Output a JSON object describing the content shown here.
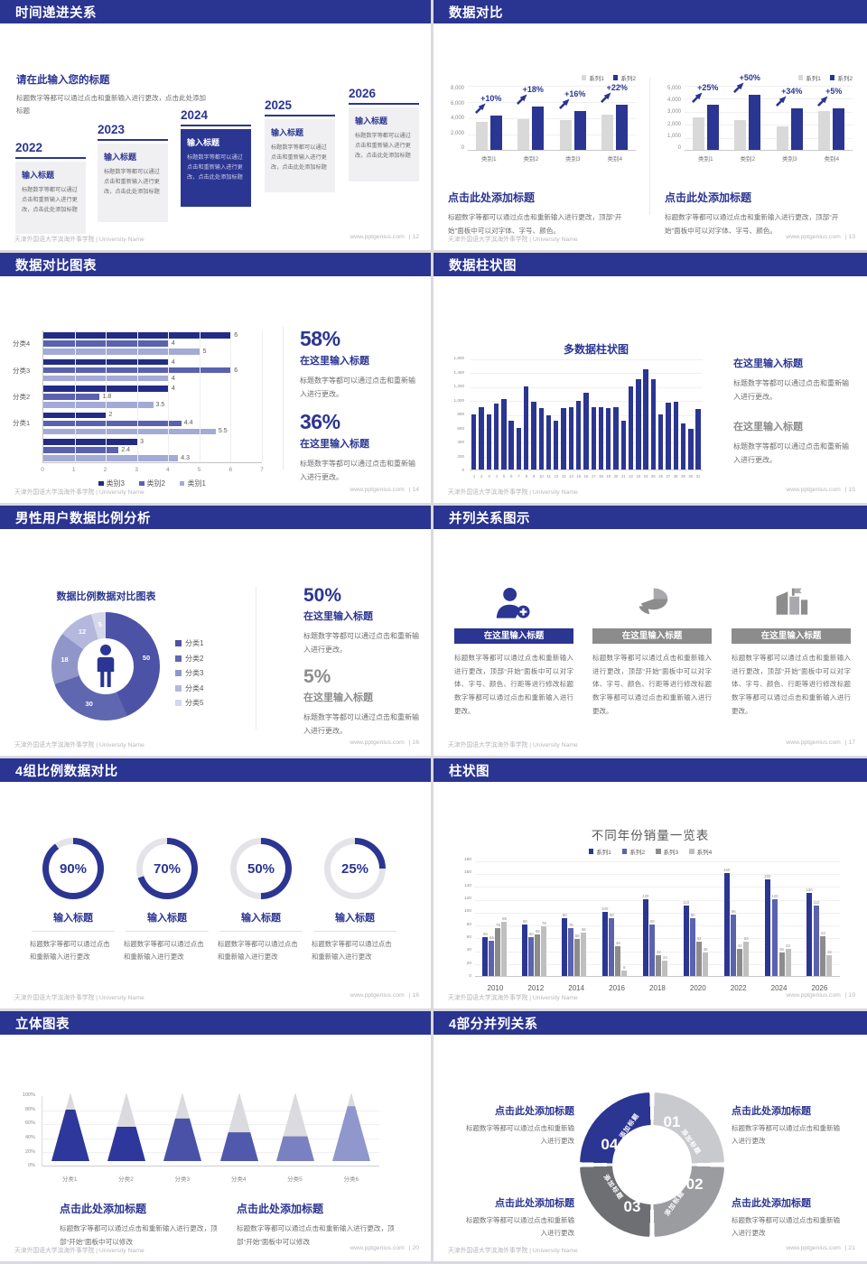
{
  "meta": {
    "kind": "presentation-template-preview",
    "slides_visible": 10
  },
  "colors": {
    "navy": "#2B3592",
    "navy_dark": "#232C85",
    "slate": "#5B63AE",
    "periwinkle": "#A3AAD6",
    "gray_bar": "#D9D9D9",
    "gray_mid": "#8C8C8C",
    "gray_light": "#BFBFBF",
    "text_gray": "#6e6e6e",
    "header_bg": "#2A3491"
  },
  "footer": {
    "school": "天津外国语大学滨海外事学院 | University Name",
    "url": "www.pptgenius.com"
  },
  "slides": [
    {
      "title": "时间递进关系",
      "page_label": "| 12",
      "intro_title": "请在此输入您的标题",
      "intro_body": "标题数字等都可以通过点击和重新输入进行更改，点击此处添加标题",
      "items": [
        {
          "year": "2022",
          "title": "输入标题",
          "body": "标题数字等都可以通过点击和重新输入进行更改，点击此处添加标题",
          "highlight": false
        },
        {
          "year": "2023",
          "title": "输入标题",
          "body": "标题数字等都可以通过点击和重新输入进行更改，点击此处添加标题",
          "highlight": false
        },
        {
          "year": "2024",
          "title": "输入标题",
          "body": "标题数字等都可以通过点击和重新输入进行更改，点击此处添加标题",
          "highlight": true
        },
        {
          "year": "2025",
          "title": "输入标题",
          "body": "标题数字等都可以通过点击和重新输入进行更改，点击此处添加标题",
          "highlight": false
        },
        {
          "year": "2026",
          "title": "输入标题",
          "body": "标题数字等都可以通过点击和重新输入进行更改，点击此处添加标题",
          "highlight": false
        }
      ]
    },
    {
      "title": "数据对比",
      "page_label": "| 13",
      "caption_title": "点击此处添加标题",
      "caption_body": "标题数字等都可以通过点击和重新输入进行更改，顶部“开始”面板中可以对字体、字号、颜色。",
      "charts": [
        {
          "type": "bar",
          "ymax": 8000,
          "yticks": [
            "8,000",
            "6,000",
            "4,000",
            "2,000",
            "0"
          ],
          "categories": [
            "类别1",
            "类别2",
            "类别3",
            "类别4"
          ],
          "series": [
            {
              "name": "系列1",
              "color": "#D9D9D9",
              "values": [
                3500,
                3800,
                3650,
                4300
              ]
            },
            {
              "name": "系列2",
              "color": "#2B3592",
              "values": [
                4200,
                5300,
                4800,
                5600
              ]
            }
          ],
          "annotations": [
            "+10%",
            "+18%",
            "+16%",
            "+22%"
          ]
        },
        {
          "type": "bar",
          "ymax": 5000,
          "yticks": [
            "5,000",
            "4,000",
            "3,000",
            "2,000",
            "1,000",
            "0"
          ],
          "categories": [
            "类别1",
            "类别2",
            "类别3",
            "类别4"
          ],
          "series": [
            {
              "name": "系列1",
              "color": "#D9D9D9",
              "values": [
                2500,
                2300,
                1800,
                3000
              ]
            },
            {
              "name": "系列2",
              "color": "#2B3592",
              "values": [
                3500,
                4250,
                3200,
                3200
              ]
            }
          ],
          "annotations": [
            "+25%",
            "+50%",
            "+34%",
            "+5%"
          ]
        }
      ]
    },
    {
      "title": "数据对比图表",
      "page_label": "| 14",
      "chart_data": {
        "type": "bar",
        "orientation": "horizontal",
        "xmax": 7,
        "xticks": [
          "0",
          "1",
          "2",
          "3",
          "4",
          "5",
          "6",
          "7"
        ],
        "series_colors": [
          "#232C85",
          "#5A62B0",
          "#A3AAD6"
        ],
        "legend": [
          "类别3",
          "类别2",
          "类别1"
        ],
        "groups": [
          {
            "label": "分类4",
            "values": [
              6,
              4,
              5
            ]
          },
          {
            "label": "分类3",
            "values": [
              4,
              6,
              4
            ]
          },
          {
            "label": "分类2",
            "values": [
              4,
              1.8,
              3.5
            ]
          },
          {
            "label": "分类1",
            "values": [
              2,
              4.4,
              5.5
            ]
          },
          {
            "label": "",
            "values": [
              3,
              2.4,
              4.3
            ]
          }
        ]
      },
      "stats": [
        {
          "value": "58%",
          "title": "在这里输入标题",
          "body": "标题数字等都可以通过点击和重新输入进行更改。",
          "muted": false
        },
        {
          "value": "36%",
          "title": "在这里输入标题",
          "body": "标题数字等都可以通过点击和重新输入进行更改。",
          "muted": false
        }
      ]
    },
    {
      "title": "数据柱状图",
      "page_label": "| 15",
      "chart_data": {
        "type": "bar",
        "title": "多数据柱状图",
        "ymax": 1600,
        "yticks": [
          "1,600",
          "1,400",
          "1,200",
          "1,000",
          "800",
          "600",
          "400",
          "200",
          "0"
        ],
        "x": [
          "1",
          "2",
          "3",
          "4",
          "5",
          "6",
          "7",
          "8",
          "9",
          "10",
          "11",
          "12",
          "13",
          "14",
          "15",
          "16",
          "17",
          "18",
          "19",
          "20",
          "21",
          "22",
          "23",
          "24",
          "25",
          "26",
          "27",
          "28",
          "29",
          "30",
          "31"
        ],
        "values": [
          800,
          900,
          800,
          950,
          1020,
          700,
          600,
          1200,
          980,
          890,
          780,
          700,
          890,
          900,
          990,
          1100,
          900,
          900,
          880,
          900,
          700,
          1200,
          1300,
          1450,
          1300,
          800,
          960,
          970,
          660,
          590,
          870
        ]
      },
      "stats": [
        {
          "title": "在这里输入标题",
          "body": "标题数字等都可以通过点击和重新输入进行更改。",
          "muted": false
        },
        {
          "title": "在这里输入标题",
          "body": "标题数字等都可以通过点击和重新输入进行更改。",
          "muted": true
        }
      ]
    },
    {
      "title": "男性用户数据比例分析",
      "page_label": "| 16",
      "chart_data": {
        "type": "pie",
        "title": "数据比例数据对比图表",
        "center_icon": "male-person-icon",
        "slices": [
          {
            "label": "分类1",
            "value": 50,
            "color": "#4C53A6"
          },
          {
            "label": "分类2",
            "value": 30,
            "color": "#6067B1"
          },
          {
            "label": "分类3",
            "value": 18,
            "color": "#9096CA"
          },
          {
            "label": "分类4",
            "value": 12,
            "color": "#B4B8DC"
          },
          {
            "label": "分类5",
            "value": 5,
            "color": "#D5D7EB"
          }
        ]
      },
      "stats": [
        {
          "value": "50%",
          "title": "在这里输入标题",
          "body": "标题数字等都可以通过点击和重新输入进行更改。",
          "muted": false
        },
        {
          "value": "5%",
          "title": "在这里输入标题",
          "body": "标题数字等都可以通过点击和重新输入进行更改。",
          "muted": true
        }
      ]
    },
    {
      "title": "并列关系图示",
      "page_label": "| 17",
      "columns": [
        {
          "icon": "person-plus-icon",
          "accent": true,
          "title": "在这里输入标题",
          "body": "标题数字等都可以通过点击和重新输入进行更改，顶部“开始”面板中可以对字体、字号、颜色、行距等进行修改标题数字等都可以通过点击和重新输入进行更改。"
        },
        {
          "icon": "pie-3d-icon",
          "accent": false,
          "title": "在这里输入标题",
          "body": "标题数字等都可以通过点击和重新输入进行更改，顶部“开始”面板中可以对字体、字号、颜色、行距等进行修改标题数字等都可以通过点击和重新输入进行更改。"
        },
        {
          "icon": "building-icon",
          "accent": false,
          "title": "在这里输入标题",
          "body": "标题数字等都可以通过点击和重新输入进行更改，顶部“开始”面板中可以对字体、字号、颜色、行距等进行修改标题数字等都可以通过点击和重新输入进行更改。"
        }
      ]
    },
    {
      "title": "4组比例数据对比",
      "page_label": "| 18",
      "rings": [
        {
          "pct": 90,
          "value": "90%",
          "title": "输入标题",
          "body": "标题数字等都可以通过点击和重新输入进行更改"
        },
        {
          "pct": 70,
          "value": "70%",
          "title": "输入标题",
          "body": "标题数字等都可以通过点击和重新输入进行更改"
        },
        {
          "pct": 50,
          "value": "50%",
          "title": "输入标题",
          "body": "标题数字等都可以通过点击和重新输入进行更改"
        },
        {
          "pct": 25,
          "value": "25%",
          "title": "输入标题",
          "body": "标题数字等都可以通过点击和重新输入进行更改"
        }
      ]
    },
    {
      "title": "柱状图",
      "page_label": "| 19",
      "chart_data": {
        "type": "bar",
        "title": "不同年份销量一览表",
        "ymax": 180,
        "yticks": [
          "180",
          "160",
          "140",
          "120",
          "100",
          "80",
          "60",
          "40",
          "20",
          "0"
        ],
        "categories": [
          "2010",
          "2012",
          "2014",
          "2016",
          "2018",
          "2020",
          "2022",
          "2024",
          "2026"
        ],
        "series": [
          {
            "name": "系列1",
            "color": "#2B3592",
            "values": [
              60,
              80,
              90,
              100,
              120,
              110,
              160,
              150,
              130
            ]
          },
          {
            "name": "系列2",
            "color": "#5B63AE",
            "values": [
              55,
              60,
              75,
              90,
              80,
              90,
              96,
              120,
              110
            ]
          },
          {
            "name": "系列3",
            "color": "#8C8C8C",
            "values": [
              75,
              65,
              58,
              46,
              32,
              54,
              42,
              36,
              62
            ]
          },
          {
            "name": "系列4",
            "color": "#BFBFBF",
            "values": [
              85,
              78,
              68,
              8,
              24,
              36,
              53,
              42,
              32
            ]
          }
        ]
      }
    },
    {
      "title": "立体图表",
      "page_label": "| 20",
      "chart_data": {
        "type": "cone",
        "yticks": [
          "100%",
          "80%",
          "60%",
          "40%",
          "20%",
          "0%"
        ],
        "categories": [
          "分类1",
          "分类2",
          "分类3",
          "分类4",
          "分类5",
          "分类6"
        ],
        "values_pct": [
          75,
          50,
          62,
          42,
          36,
          80
        ],
        "colors": [
          "#2E379B",
          "#2E379B",
          "#4A52A8",
          "#5059AB",
          "#7A81C0",
          "#8F97CD"
        ]
      },
      "captions": [
        {
          "title": "点击此处添加标题",
          "body": "标题数字等都可以通过点击和重新输入进行更改，顶部“开始”面板中可以修改"
        },
        {
          "title": "点击此处添加标题",
          "body": "标题数字等都可以通过点击和重新输入进行更改，顶部“开始”面板中可以修改"
        }
      ]
    },
    {
      "title": "4部分并列关系",
      "page_label": "| 21",
      "segments": [
        {
          "num": "01",
          "label": "添加标题",
          "color": "#C9CACE"
        },
        {
          "num": "02",
          "label": "添加标题",
          "color": "#9B9CA0"
        },
        {
          "num": "03",
          "label": "添加标题",
          "color": "#6E6F73"
        },
        {
          "num": "04",
          "label": "添加标题",
          "color": "#2B3592"
        }
      ],
      "blocks": [
        {
          "title": "点击此处添加标题",
          "body": "标题数字等都可以通过点击和重新输入进行更改"
        },
        {
          "title": "点击此处添加标题",
          "body": "标题数字等都可以通过点击和重新输入进行更改"
        },
        {
          "title": "点击此处添加标题",
          "body": "标题数字等都可以通过点击和重新输入进行更改"
        },
        {
          "title": "点击此处添加标题",
          "body": "标题数字等都可以通过点击和重新输入进行更改"
        }
      ]
    }
  ]
}
